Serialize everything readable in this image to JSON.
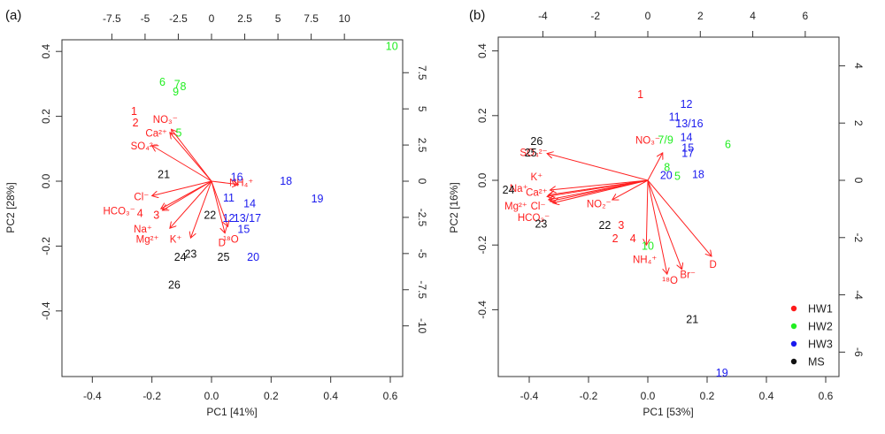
{
  "colors": {
    "HW1": "#ff1a1a",
    "HW2": "#22ee22",
    "HW3": "#1a1aee",
    "MS": "#111111",
    "arrow": "#ff2020"
  },
  "legend": {
    "placement": "bottom-right of panel (b)",
    "items": [
      {
        "label": "HW1",
        "group": "HW1"
      },
      {
        "label": "HW2",
        "group": "HW2"
      },
      {
        "label": "HW3",
        "group": "HW3"
      },
      {
        "label": "MS",
        "group": "MS"
      }
    ]
  },
  "chart_data": [
    {
      "type": "scatter",
      "subtype": "PCA biplot",
      "panel_label": "(a)",
      "xlabel": "PC1 [41%]",
      "ylabel": "PC2 [28%]",
      "xlim": [
        -0.5,
        0.65
      ],
      "ylim": [
        -0.6,
        0.44
      ],
      "xticks": [
        -0.4,
        -0.2,
        0.0,
        0.2,
        0.4,
        0.6
      ],
      "xtick_labels": [
        "-0.4",
        "-0.2",
        "0.0",
        "0.2",
        "0.4",
        "0.6"
      ],
      "yticks": [
        0.4,
        0.2,
        0.0,
        -0.2,
        -0.4
      ],
      "ytick_labels": [
        "0.4",
        "0.2",
        "0.0",
        "-0.2",
        "-0.4"
      ],
      "top_ticks": [
        -7.5,
        -5,
        -2.5,
        0,
        2.5,
        5,
        7.5,
        10
      ],
      "top_tick_labels": [
        "-7.5",
        "-5",
        "-2.5",
        "0",
        "2.5",
        "5",
        "7.5",
        "10"
      ],
      "right_ticks": [
        7.5,
        5,
        2.5,
        0,
        -2.5,
        -5,
        -7.5,
        -10
      ],
      "right_tick_labels": [
        "7.5",
        "5",
        "2.5",
        "0",
        "-2.5",
        "-5",
        "-7.5",
        "-10"
      ],
      "secondary_scale": 0.0446,
      "grid": false,
      "observations": [
        {
          "label": "1",
          "group": "HW1",
          "x": -0.26,
          "y": 0.215
        },
        {
          "label": "2",
          "group": "HW1",
          "x": -0.255,
          "y": 0.18
        },
        {
          "label": "3",
          "group": "HW1",
          "x": -0.185,
          "y": -0.105
        },
        {
          "label": "4",
          "group": "HW1",
          "x": -0.24,
          "y": -0.1
        },
        {
          "label": "5",
          "group": "HW2",
          "x": -0.11,
          "y": 0.148
        },
        {
          "label": "6",
          "group": "HW2",
          "x": -0.165,
          "y": 0.305
        },
        {
          "label": "7",
          "group": "HW2",
          "x": -0.115,
          "y": 0.298
        },
        {
          "label": "8",
          "group": "HW2",
          "x": -0.095,
          "y": 0.292
        },
        {
          "label": "9",
          "group": "HW2",
          "x": -0.12,
          "y": 0.275
        },
        {
          "label": "10",
          "group": "HW2",
          "x": 0.605,
          "y": 0.415
        },
        {
          "label": "11",
          "group": "HW3",
          "x": 0.058,
          "y": -0.052
        },
        {
          "label": "12",
          "group": "HW3",
          "x": 0.058,
          "y": -0.115
        },
        {
          "label": "13/17",
          "group": "HW3",
          "x": 0.12,
          "y": -0.115
        },
        {
          "label": "14",
          "group": "HW3",
          "x": 0.128,
          "y": -0.07
        },
        {
          "label": "15",
          "group": "HW3",
          "x": 0.108,
          "y": -0.148
        },
        {
          "label": "16",
          "group": "HW3",
          "x": 0.085,
          "y": 0.012
        },
        {
          "label": "18",
          "group": "HW3",
          "x": 0.25,
          "y": 0.0
        },
        {
          "label": "19",
          "group": "HW3",
          "x": 0.355,
          "y": -0.055
        },
        {
          "label": "20",
          "group": "HW3",
          "x": 0.14,
          "y": -0.235
        },
        {
          "label": "21",
          "group": "MS",
          "x": -0.16,
          "y": 0.02
        },
        {
          "label": "22",
          "group": "MS",
          "x": -0.005,
          "y": -0.105
        },
        {
          "label": "23",
          "group": "MS",
          "x": -0.07,
          "y": -0.225
        },
        {
          "label": "24",
          "group": "MS",
          "x": -0.105,
          "y": -0.235
        },
        {
          "label": "25",
          "group": "MS",
          "x": 0.04,
          "y": -0.235
        },
        {
          "label": "26",
          "group": "MS",
          "x": -0.125,
          "y": -0.32
        }
      ],
      "loadings": [
        {
          "label": "NO3-",
          "display": "NO₃⁻",
          "x": -0.135,
          "y": 0.16
        },
        {
          "label": "Ca2+",
          "display": "Ca²⁺",
          "x": -0.14,
          "y": 0.15
        },
        {
          "label": "SO4 2-",
          "display": "SO₄²⁻",
          "x": -0.2,
          "y": 0.11
        },
        {
          "label": "NH4+",
          "display": "NH₄⁺",
          "x": 0.09,
          "y": -0.01
        },
        {
          "label": "Cl-",
          "display": "Cl⁻",
          "x": -0.2,
          "y": -0.045
        },
        {
          "label": "HCO3-",
          "display": "HCO₃⁻",
          "x": -0.17,
          "y": -0.085
        },
        {
          "label": "Na+",
          "display": "Na⁺",
          "x": -0.165,
          "y": -0.09
        },
        {
          "label": "Mg2+",
          "display": "Mg²⁺",
          "x": -0.14,
          "y": -0.145
        },
        {
          "label": "K+",
          "display": "K⁺",
          "x": -0.07,
          "y": -0.175
        },
        {
          "label": "D",
          "display": "D",
          "x": 0.045,
          "y": -0.16
        },
        {
          "label": "18O",
          "display": "¹⁸O",
          "x": 0.055,
          "y": -0.14
        }
      ],
      "loading_label_positions": [
        {
          "label": "NO3-",
          "x": -0.155,
          "y": 0.18
        },
        {
          "label": "Ca2+",
          "x": -0.185,
          "y": 0.137
        },
        {
          "label": "SO4 2-",
          "x": -0.225,
          "y": 0.098
        },
        {
          "label": "NH4+",
          "x": 0.1,
          "y": -0.015
        },
        {
          "label": "Cl-",
          "x": -0.235,
          "y": -0.058
        },
        {
          "label": "HCO3-",
          "x": -0.31,
          "y": -0.102
        },
        {
          "label": "Na+",
          "x": -0.23,
          "y": -0.158
        },
        {
          "label": "Mg2+",
          "x": -0.215,
          "y": -0.19
        },
        {
          "label": "K+",
          "x": -0.12,
          "y": -0.19
        },
        {
          "label": "D",
          "x": 0.035,
          "y": -0.2
        },
        {
          "label": "18O",
          "x": 0.065,
          "y": -0.19
        }
      ]
    },
    {
      "type": "scatter",
      "subtype": "PCA biplot",
      "panel_label": "(b)",
      "xlabel": "PC1 [53%]",
      "ylabel": "PC2 [16%]",
      "xlim": [
        -0.5,
        0.65
      ],
      "ylim": [
        -0.6,
        0.44
      ],
      "xticks": [
        -0.4,
        -0.2,
        0.0,
        0.2,
        0.4,
        0.6
      ],
      "xtick_labels": [
        "-0.4",
        "-0.2",
        "0.0",
        "0.2",
        "0.4",
        "0.6"
      ],
      "yticks": [
        0.4,
        0.2,
        0.0,
        -0.2,
        -0.4
      ],
      "ytick_labels": [
        "0.4",
        "0.2",
        "0.0",
        "-0.2",
        "-0.4"
      ],
      "top_ticks": [
        -4,
        -2,
        0,
        2,
        4,
        6
      ],
      "top_tick_labels": [
        "-4",
        "-2",
        "0",
        "2",
        "4",
        "6"
      ],
      "right_ticks": [
        4,
        2,
        0,
        -2,
        -4,
        -6
      ],
      "right_tick_labels": [
        "4",
        "2",
        "0",
        "-2",
        "-4",
        "-6"
      ],
      "secondary_scale": 0.0885,
      "grid": false,
      "observations": [
        {
          "label": "1",
          "group": "HW1",
          "x": -0.025,
          "y": 0.265
        },
        {
          "label": "2",
          "group": "HW1",
          "x": -0.11,
          "y": -0.18
        },
        {
          "label": "3",
          "group": "HW1",
          "x": -0.09,
          "y": -0.14
        },
        {
          "label": "4",
          "group": "HW1",
          "x": -0.05,
          "y": -0.18
        },
        {
          "label": "5",
          "group": "HW2",
          "x": 0.1,
          "y": 0.012
        },
        {
          "label": "6",
          "group": "HW2",
          "x": 0.27,
          "y": 0.11
        },
        {
          "label": "7/9",
          "group": "HW2",
          "x": 0.06,
          "y": 0.125
        },
        {
          "label": "8",
          "group": "HW2",
          "x": 0.065,
          "y": 0.04
        },
        {
          "label": "10",
          "group": "HW2",
          "x": 0.0,
          "y": -0.203
        },
        {
          "label": "11",
          "group": "HW3",
          "x": 0.09,
          "y": 0.195
        },
        {
          "label": "12",
          "group": "HW3",
          "x": 0.13,
          "y": 0.235
        },
        {
          "label": "13/16",
          "group": "HW3",
          "x": 0.14,
          "y": 0.175
        },
        {
          "label": "14",
          "group": "HW3",
          "x": 0.13,
          "y": 0.132
        },
        {
          "label": "15",
          "group": "HW3",
          "x": 0.135,
          "y": 0.1
        },
        {
          "label": "17",
          "group": "HW3",
          "x": 0.135,
          "y": 0.083
        },
        {
          "label": "18",
          "group": "HW3",
          "x": 0.17,
          "y": 0.018
        },
        {
          "label": "19",
          "group": "HW3",
          "x": 0.25,
          "y": -0.595
        },
        {
          "label": "20",
          "group": "HW3",
          "x": 0.062,
          "y": 0.015
        },
        {
          "label": "21",
          "group": "MS",
          "x": 0.15,
          "y": -0.43
        },
        {
          "label": "22",
          "group": "MS",
          "x": -0.145,
          "y": -0.14
        },
        {
          "label": "23",
          "group": "MS",
          "x": -0.36,
          "y": -0.135
        },
        {
          "label": "24",
          "group": "MS",
          "x": -0.47,
          "y": -0.03
        },
        {
          "label": "25",
          "group": "MS",
          "x": -0.395,
          "y": 0.085
        },
        {
          "label": "26",
          "group": "MS",
          "x": -0.375,
          "y": 0.12
        }
      ],
      "loadings": [
        {
          "label": "SO4 2-",
          "display": "SO₄²⁻",
          "x": -0.34,
          "y": 0.083
        },
        {
          "label": "K+",
          "display": "K⁺",
          "x": -0.33,
          "y": -0.03
        },
        {
          "label": "Ca2+",
          "display": "Ca²⁺",
          "x": -0.335,
          "y": -0.045
        },
        {
          "label": "Na+",
          "display": "Na⁺",
          "x": -0.34,
          "y": -0.05
        },
        {
          "label": "Mg2+",
          "display": "Mg²⁺",
          "x": -0.335,
          "y": -0.06
        },
        {
          "label": "Cl-",
          "display": "Cl⁻",
          "x": -0.33,
          "y": -0.065
        },
        {
          "label": "HCO3-",
          "display": "HCO₃⁻",
          "x": -0.32,
          "y": -0.07
        },
        {
          "label": "NO2-",
          "display": "NO₂⁻",
          "x": -0.12,
          "y": -0.06
        },
        {
          "label": "NO3-",
          "display": "NO₃⁻",
          "x": 0.05,
          "y": 0.085
        },
        {
          "label": "NH4+",
          "display": "NH₄⁺",
          "x": -0.005,
          "y": -0.2
        },
        {
          "label": "18O",
          "display": "¹⁸O",
          "x": 0.065,
          "y": -0.29
        },
        {
          "label": "Br-",
          "display": "Br⁻",
          "x": 0.115,
          "y": -0.275
        },
        {
          "label": "D",
          "display": "D",
          "x": 0.215,
          "y": -0.235
        }
      ],
      "loading_label_positions": [
        {
          "label": "SO4 2-",
          "x": -0.385,
          "y": 0.075
        },
        {
          "label": "K+",
          "x": -0.375,
          "y": -0.0
        },
        {
          "label": "Ca2+",
          "x": -0.375,
          "y": -0.048
        },
        {
          "label": "Na+",
          "x": -0.435,
          "y": -0.035
        },
        {
          "label": "Mg2+",
          "x": -0.445,
          "y": -0.09
        },
        {
          "label": "Cl-",
          "x": -0.37,
          "y": -0.09
        },
        {
          "label": "HCO3-",
          "x": -0.385,
          "y": -0.125
        },
        {
          "label": "NO2-",
          "x": -0.165,
          "y": -0.083
        },
        {
          "label": "NO3-",
          "x": -0.0,
          "y": 0.113
        },
        {
          "label": "NH4+",
          "x": -0.01,
          "y": -0.255
        },
        {
          "label": "18O",
          "x": 0.075,
          "y": -0.32
        },
        {
          "label": "Br-",
          "x": 0.135,
          "y": -0.302
        },
        {
          "label": "D",
          "x": 0.22,
          "y": -0.27
        }
      ]
    }
  ]
}
